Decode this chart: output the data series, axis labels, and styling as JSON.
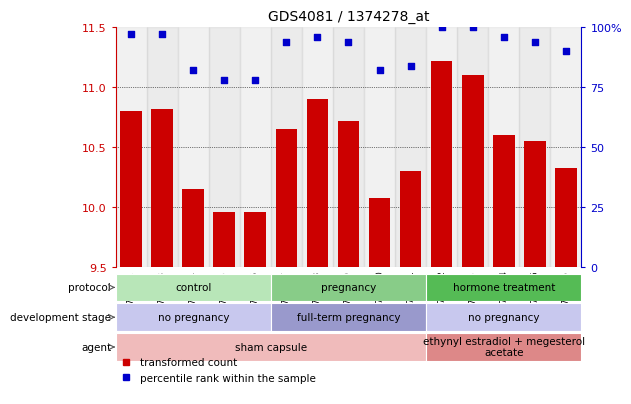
{
  "title": "GDS4081 / 1374278_at",
  "samples": [
    "GSM796392",
    "GSM796393",
    "GSM796394",
    "GSM796395",
    "GSM796396",
    "GSM796397",
    "GSM796398",
    "GSM796399",
    "GSM796400",
    "GSM796401",
    "GSM796402",
    "GSM796403",
    "GSM796404",
    "GSM796405",
    "GSM796406"
  ],
  "bar_values": [
    10.8,
    10.82,
    10.15,
    9.96,
    9.96,
    10.65,
    10.9,
    10.72,
    10.08,
    10.3,
    11.22,
    11.1,
    10.6,
    10.55,
    10.33
  ],
  "dot_values": [
    97,
    97,
    82,
    78,
    78,
    94,
    96,
    94,
    82,
    84,
    100,
    100,
    96,
    94,
    90
  ],
  "bar_color": "#cc0000",
  "dot_color": "#0000cc",
  "ylim_left": [
    9.5,
    11.5
  ],
  "ylim_right": [
    0,
    100
  ],
  "yticks_left": [
    9.5,
    10.0,
    10.5,
    11.0,
    11.5
  ],
  "yticks_right": [
    0,
    25,
    50,
    75,
    100
  ],
  "ytick_labels_right": [
    "0",
    "25",
    "50",
    "75",
    "100%"
  ],
  "grid_values": [
    10.0,
    10.5,
    11.0
  ],
  "row_labels": [
    "protocol",
    "development stage",
    "agent"
  ],
  "protocol_groups": [
    {
      "start": 0,
      "end": 4,
      "color": "#b8e6b8",
      "label": "control"
    },
    {
      "start": 5,
      "end": 9,
      "color": "#88cc88",
      "label": "pregnancy"
    },
    {
      "start": 10,
      "end": 14,
      "color": "#55bb55",
      "label": "hormone treatment"
    }
  ],
  "devstage_groups": [
    {
      "start": 0,
      "end": 4,
      "color": "#c8c8ee",
      "label": "no pregnancy"
    },
    {
      "start": 5,
      "end": 9,
      "color": "#9999cc",
      "label": "full-term pregnancy"
    },
    {
      "start": 10,
      "end": 14,
      "color": "#c8c8ee",
      "label": "no pregnancy"
    }
  ],
  "agent_groups": [
    {
      "start": 0,
      "end": 9,
      "color": "#f0bbbb",
      "label": "sham capsule"
    },
    {
      "start": 10,
      "end": 14,
      "color": "#dd8888",
      "label": "ethynyl estradiol + megesterol\nacetate"
    }
  ],
  "legend_bar_label": "transformed count",
  "legend_dot_label": "percentile rank within the sample",
  "bg_color": "#ffffff"
}
